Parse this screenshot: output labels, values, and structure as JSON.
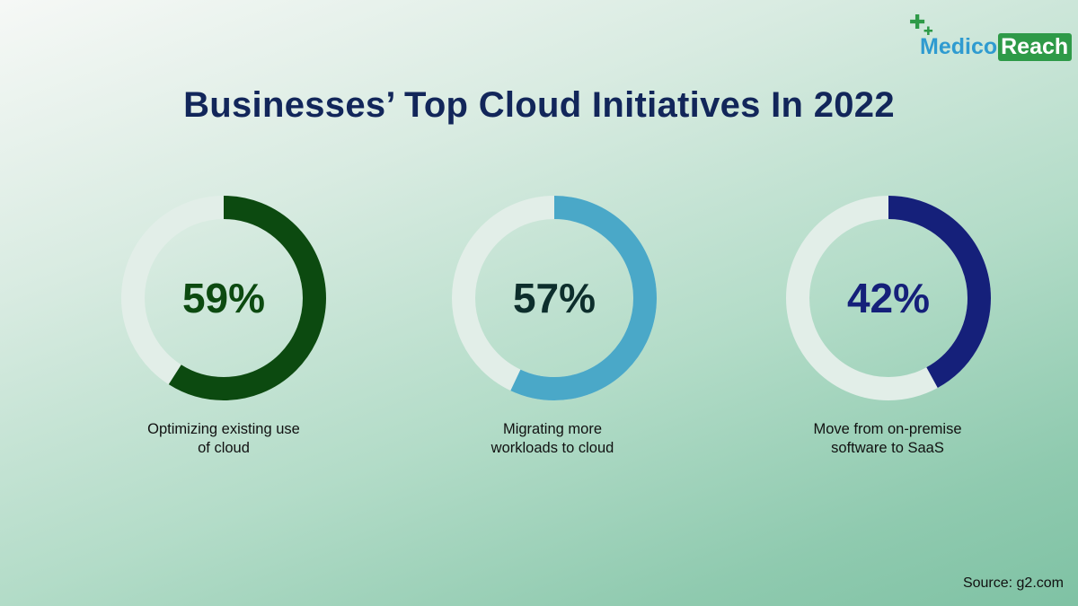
{
  "title": "Businesses’ Top Cloud Initiatives In 2022",
  "logo": {
    "part1": "Medico",
    "part2": "Reach"
  },
  "source": "Source: g2.com",
  "colors": {
    "track": "#e2eee8",
    "title": "#12265a"
  },
  "chart_data": {
    "type": "pie",
    "items": [
      {
        "value": 59,
        "display": "59%",
        "label_line1": "Optimizing existing use",
        "label_line2": "of cloud",
        "color": "#0c4a10",
        "text_color": "#0c4a10"
      },
      {
        "value": 57,
        "display": "57%",
        "label_line1": "Migrating more",
        "label_line2": "workloads to cloud",
        "color": "#4aa8c8",
        "text_color": "#0d2e2c"
      },
      {
        "value": 42,
        "display": "42%",
        "label_line1": "Move from on-premise",
        "label_line2": "software to SaaS",
        "color": "#15207a",
        "text_color": "#15207a"
      }
    ]
  }
}
